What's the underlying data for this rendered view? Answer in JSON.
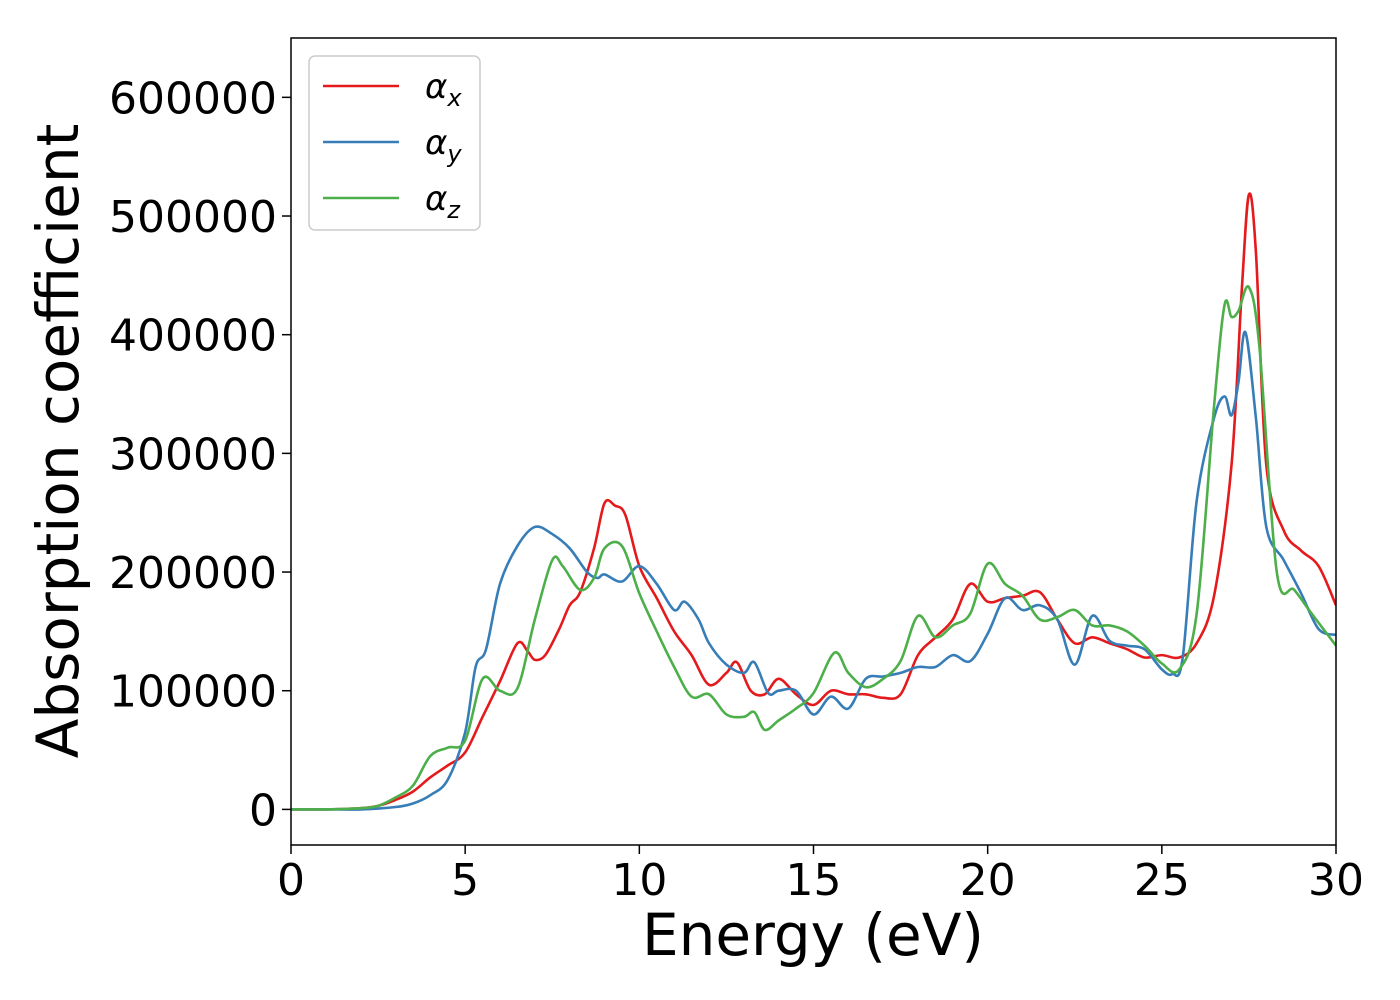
{
  "chart_data": {
    "type": "line",
    "xlabel": "Energy (eV)",
    "ylabel": "Absorption coefficient",
    "xlim": [
      0,
      30
    ],
    "ylim": [
      -30000,
      650000
    ],
    "x_ticks": [
      0,
      5,
      10,
      15,
      20,
      25,
      30
    ],
    "y_ticks": [
      0,
      100000,
      200000,
      300000,
      400000,
      500000,
      600000
    ],
    "grid": false,
    "legend_placement": "upper-left",
    "series": [
      {
        "name": "α_x",
        "label_main": "α",
        "label_sub": "x",
        "color": "#e41a1c",
        "x": [
          0,
          1,
          2,
          2.5,
          3,
          3.5,
          4,
          4.5,
          5,
          5.5,
          6,
          6.5,
          6.8,
          7,
          7.3,
          7.7,
          8,
          8.3,
          8.7,
          9,
          9.3,
          9.6,
          10,
          10.5,
          11,
          11.5,
          12,
          12.5,
          12.8,
          13.2,
          13.6,
          14,
          14.5,
          15,
          15.5,
          16,
          16.5,
          17,
          17.5,
          18,
          18.5,
          19,
          19.5,
          20,
          20.5,
          21,
          21.5,
          22,
          22.5,
          23,
          23.5,
          24,
          24.5,
          25,
          25.5,
          26,
          26.5,
          27,
          27.3,
          27.5,
          27.7,
          28,
          28.5,
          29,
          29.5,
          30
        ],
        "y": [
          0,
          0,
          1000,
          3000,
          8000,
          15000,
          27000,
          37000,
          48000,
          78000,
          108000,
          140000,
          133000,
          126000,
          130000,
          152000,
          172000,
          183000,
          220000,
          258000,
          256000,
          248000,
          205000,
          178000,
          150000,
          130000,
          105000,
          115000,
          124000,
          100000,
          97000,
          110000,
          97000,
          88000,
          100000,
          97000,
          97000,
          94000,
          97000,
          130000,
          145000,
          160000,
          190000,
          175000,
          178000,
          180000,
          183000,
          160000,
          140000,
          145000,
          140000,
          135000,
          128000,
          130000,
          128000,
          140000,
          180000,
          290000,
          440000,
          518000,
          470000,
          290000,
          235000,
          218000,
          205000,
          172000
        ]
      },
      {
        "name": "α_y",
        "label_main": "α",
        "label_sub": "y",
        "color": "#377eb8",
        "x": [
          0,
          1,
          2,
          3,
          3.5,
          4,
          4.5,
          5,
          5.3,
          5.6,
          6,
          6.5,
          7,
          7.5,
          8,
          8.5,
          8.8,
          9,
          9.5,
          10,
          10.5,
          11,
          11.3,
          11.7,
          12,
          12.5,
          13,
          13.3,
          13.7,
          14,
          14.5,
          15,
          15.5,
          16,
          16.5,
          17,
          17.5,
          18,
          18.5,
          19,
          19.5,
          20,
          20.5,
          21,
          21.5,
          22,
          22.5,
          23,
          23.5,
          24,
          24.5,
          25,
          25.3,
          25.6,
          26,
          26.5,
          26.8,
          27,
          27.2,
          27.4,
          27.7,
          28,
          28.5,
          29,
          29.5,
          30
        ],
        "y": [
          0,
          0,
          0,
          2000,
          5000,
          12000,
          25000,
          65000,
          120000,
          135000,
          190000,
          222000,
          238000,
          232000,
          220000,
          200000,
          195000,
          198000,
          192000,
          205000,
          190000,
          168000,
          175000,
          160000,
          140000,
          122000,
          115000,
          124000,
          98000,
          100000,
          100000,
          80000,
          95000,
          85000,
          110000,
          112000,
          115000,
          120000,
          120000,
          130000,
          125000,
          148000,
          178000,
          168000,
          172000,
          160000,
          122000,
          163000,
          142000,
          138000,
          135000,
          118000,
          114000,
          128000,
          260000,
          330000,
          348000,
          332000,
          360000,
          402000,
          330000,
          238000,
          210000,
          182000,
          152000,
          147000
        ]
      },
      {
        "name": "α_z",
        "label_main": "α",
        "label_sub": "z",
        "color": "#4daf4a",
        "x": [
          0,
          1,
          2,
          2.5,
          3,
          3.5,
          4,
          4.5,
          5,
          5.5,
          6,
          6.5,
          7,
          7.5,
          7.8,
          8.3,
          8.7,
          9,
          9.5,
          10,
          10.5,
          11,
          11.5,
          12,
          12.5,
          13,
          13.3,
          13.6,
          14,
          14.5,
          15,
          15.6,
          16,
          16.5,
          17,
          17.5,
          18,
          18.5,
          19,
          19.5,
          20,
          20.5,
          21,
          21.5,
          22,
          22.5,
          23,
          23.5,
          24,
          24.5,
          25,
          25.5,
          26,
          26.5,
          26.8,
          27,
          27.2,
          27.5,
          27.8,
          28.3,
          28.8,
          29.3,
          30
        ],
        "y": [
          0,
          0,
          1000,
          3000,
          10000,
          20000,
          45000,
          52000,
          58000,
          110000,
          100000,
          102000,
          160000,
          210000,
          205000,
          185000,
          195000,
          220000,
          222000,
          182000,
          150000,
          120000,
          95000,
          97000,
          80000,
          78000,
          82000,
          67000,
          75000,
          85000,
          98000,
          132000,
          115000,
          103000,
          110000,
          125000,
          163000,
          145000,
          155000,
          165000,
          207000,
          190000,
          180000,
          160000,
          162000,
          168000,
          155000,
          155000,
          150000,
          138000,
          123000,
          118000,
          165000,
          340000,
          425000,
          415000,
          420000,
          440000,
          390000,
          200000,
          185000,
          165000,
          138000
        ]
      }
    ]
  }
}
